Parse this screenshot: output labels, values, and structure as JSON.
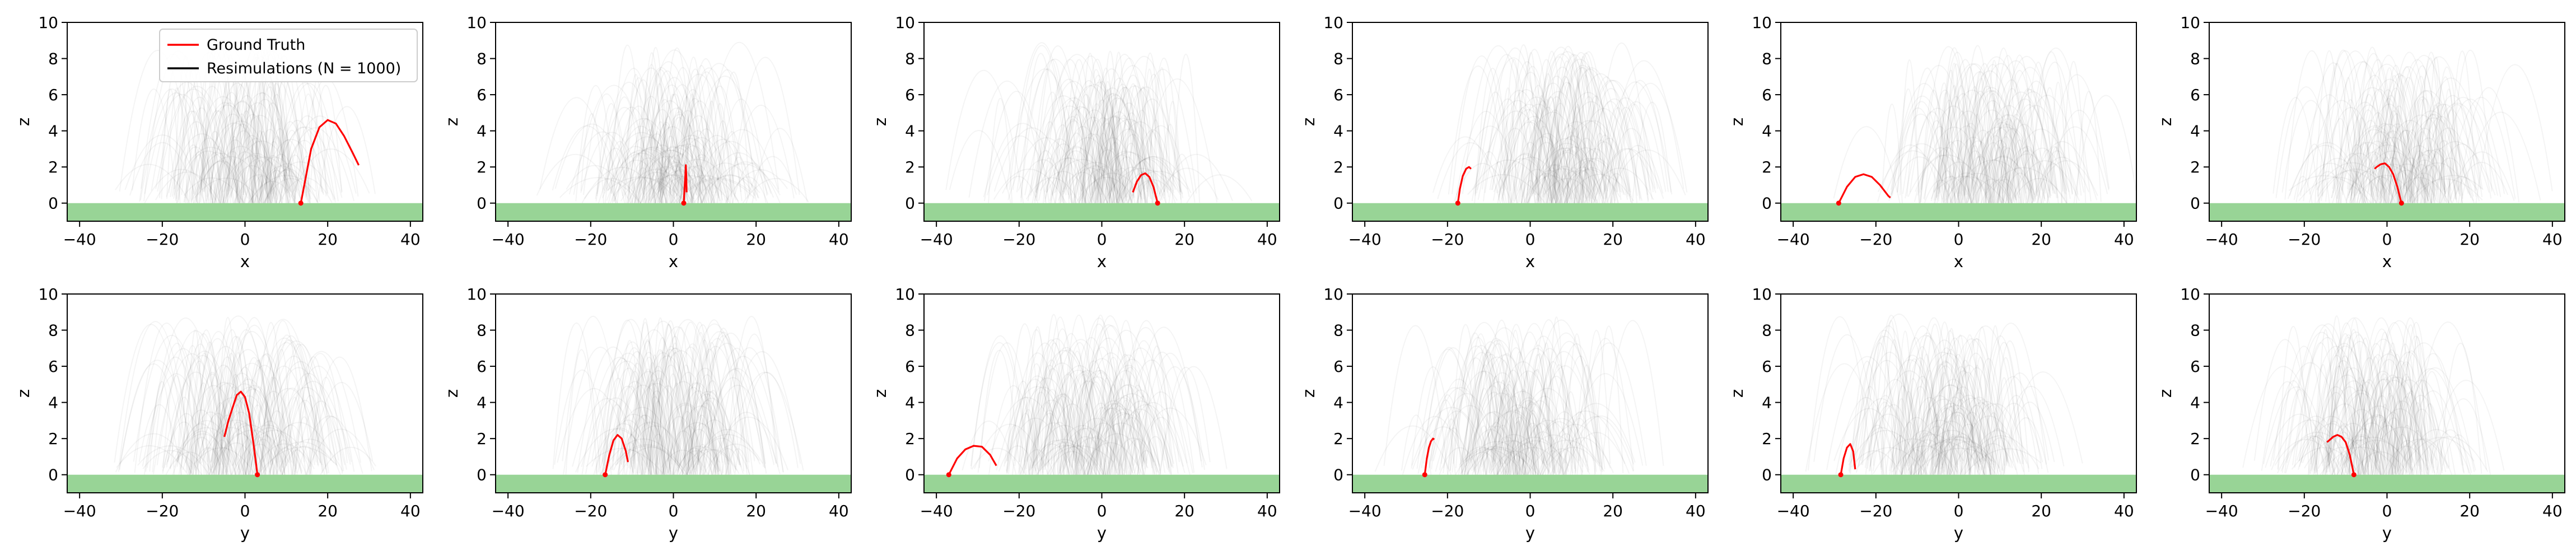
{
  "legend": {
    "location": "upper-left of first panel",
    "entries": [
      {
        "label": "Ground Truth",
        "color": "#ff0000"
      },
      {
        "label": "Resimulations (N = 1000)",
        "color": "#000000"
      }
    ]
  },
  "colors": {
    "ground_truth": "#ff0000",
    "resimulation": "#000000",
    "ground_band": "#98d496",
    "axes": "#000000"
  },
  "chart_data": [
    {
      "type": "line",
      "row": 1,
      "col": 1,
      "xlabel": "x",
      "ylabel": "z",
      "xlim": [
        -43,
        43
      ],
      "ylim": [
        -1,
        10
      ],
      "xticks": [
        -40,
        -20,
        0,
        20,
        40
      ],
      "yticks": [
        0,
        2,
        4,
        6,
        8,
        10
      ],
      "ground_band": [
        -1,
        0
      ],
      "resim_cloud_center_x": 0,
      "series": [
        {
          "name": "Ground Truth",
          "x": [
            13.5,
            14.5,
            16,
            18,
            20,
            22,
            24,
            26,
            27.5
          ],
          "y": [
            0,
            1.2,
            3.0,
            4.2,
            4.6,
            4.4,
            3.7,
            2.8,
            2.1
          ]
        }
      ]
    },
    {
      "type": "line",
      "row": 1,
      "col": 2,
      "xlabel": "x",
      "ylabel": "z",
      "xlim": [
        -43,
        43
      ],
      "ylim": [
        -1,
        10
      ],
      "xticks": [
        -40,
        -20,
        0,
        20,
        40
      ],
      "yticks": [
        0,
        2,
        4,
        6,
        8,
        10
      ],
      "ground_band": [
        -1,
        0
      ],
      "resim_cloud_center_x": 0,
      "series": [
        {
          "name": "Ground Truth",
          "x": [
            2.5,
            2.7,
            2.9,
            3.0,
            3.1,
            3.2
          ],
          "y": [
            0,
            0.8,
            1.6,
            2.1,
            1.6,
            0.6
          ]
        }
      ]
    },
    {
      "type": "line",
      "row": 1,
      "col": 3,
      "xlabel": "x",
      "ylabel": "z",
      "xlim": [
        -43,
        43
      ],
      "ylim": [
        -1,
        10
      ],
      "xticks": [
        -40,
        -20,
        0,
        20,
        40
      ],
      "yticks": [
        0,
        2,
        4,
        6,
        8,
        10
      ],
      "ground_band": [
        -1,
        0
      ],
      "resim_cloud_center_x": 0,
      "series": [
        {
          "name": "Ground Truth",
          "x": [
            13.5,
            12.5,
            11.5,
            10.5,
            9.5,
            8.5,
            7.5
          ],
          "y": [
            0,
            0.9,
            1.45,
            1.65,
            1.55,
            1.2,
            0.6
          ]
        }
      ]
    },
    {
      "type": "line",
      "row": 1,
      "col": 4,
      "xlabel": "x",
      "ylabel": "z",
      "xlim": [
        -43,
        43
      ],
      "ylim": [
        -1,
        10
      ],
      "xticks": [
        -40,
        -20,
        0,
        20,
        40
      ],
      "yticks": [
        0,
        2,
        4,
        6,
        8,
        10
      ],
      "ground_band": [
        -1,
        0
      ],
      "resim_cloud_center_x": 8,
      "series": [
        {
          "name": "Ground Truth",
          "x": [
            -17.5,
            -17.0,
            -16.3,
            -15.5,
            -14.8,
            -14.3
          ],
          "y": [
            0,
            0.8,
            1.5,
            1.9,
            2.0,
            1.9
          ]
        }
      ]
    },
    {
      "type": "line",
      "row": 1,
      "col": 5,
      "xlabel": "x",
      "ylabel": "z",
      "xlim": [
        -43,
        43
      ],
      "ylim": [
        -1,
        10
      ],
      "xticks": [
        -40,
        -20,
        0,
        20,
        40
      ],
      "yticks": [
        0,
        2,
        4,
        6,
        8,
        10
      ],
      "ground_band": [
        -1,
        0
      ],
      "resim_cloud_center_x": 8,
      "series": [
        {
          "name": "Ground Truth",
          "x": [
            -29,
            -27,
            -25,
            -23,
            -21,
            -19,
            -17,
            -16.5
          ],
          "y": [
            0,
            0.9,
            1.45,
            1.6,
            1.45,
            1.0,
            0.4,
            0.3
          ]
        }
      ]
    },
    {
      "type": "line",
      "row": 1,
      "col": 6,
      "xlabel": "x",
      "ylabel": "z",
      "xlim": [
        -43,
        43
      ],
      "ylim": [
        -1,
        10
      ],
      "xticks": [
        -40,
        -20,
        0,
        20,
        40
      ],
      "yticks": [
        0,
        2,
        4,
        6,
        8,
        10
      ],
      "ground_band": [
        -1,
        0
      ],
      "resim_cloud_center_x": 2,
      "series": [
        {
          "name": "Ground Truth",
          "x": [
            3.5,
            2.5,
            1.5,
            0.5,
            -0.5,
            -1.5,
            -2.5,
            -3.0
          ],
          "y": [
            0,
            0.9,
            1.6,
            2.0,
            2.2,
            2.15,
            2.0,
            1.9
          ]
        }
      ]
    },
    {
      "type": "line",
      "row": 2,
      "col": 1,
      "xlabel": "y",
      "ylabel": "z",
      "xlim": [
        -43,
        43
      ],
      "ylim": [
        -1,
        10
      ],
      "xticks": [
        -40,
        -20,
        0,
        20,
        40
      ],
      "yticks": [
        0,
        2,
        4,
        6,
        8,
        10
      ],
      "ground_band": [
        -1,
        0
      ],
      "resim_cloud_center_x": 0,
      "series": [
        {
          "name": "Ground Truth",
          "x": [
            3,
            2,
            1,
            0,
            -1,
            -2,
            -3,
            -4,
            -5
          ],
          "y": [
            0,
            1.8,
            3.4,
            4.3,
            4.6,
            4.4,
            3.7,
            3.0,
            2.1
          ]
        }
      ]
    },
    {
      "type": "line",
      "row": 2,
      "col": 2,
      "xlabel": "y",
      "ylabel": "z",
      "xlim": [
        -43,
        43
      ],
      "ylim": [
        -1,
        10
      ],
      "xticks": [
        -40,
        -20,
        0,
        20,
        40
      ],
      "yticks": [
        0,
        2,
        4,
        6,
        8,
        10
      ],
      "ground_band": [
        -1,
        0
      ],
      "resim_cloud_center_x": 0,
      "series": [
        {
          "name": "Ground Truth",
          "x": [
            -16.5,
            -15.5,
            -14.5,
            -13.5,
            -12.5,
            -11.5,
            -11.0
          ],
          "y": [
            0,
            1.1,
            1.9,
            2.2,
            2.0,
            1.3,
            0.7
          ]
        }
      ]
    },
    {
      "type": "line",
      "row": 2,
      "col": 3,
      "xlabel": "y",
      "ylabel": "z",
      "xlim": [
        -43,
        43
      ],
      "ylim": [
        -1,
        10
      ],
      "xticks": [
        -40,
        -20,
        0,
        20,
        40
      ],
      "yticks": [
        0,
        2,
        4,
        6,
        8,
        10
      ],
      "ground_band": [
        -1,
        0
      ],
      "resim_cloud_center_x": -3,
      "series": [
        {
          "name": "Ground Truth",
          "x": [
            -37,
            -35,
            -33,
            -31,
            -29,
            -27,
            -25.5
          ],
          "y": [
            0,
            0.9,
            1.4,
            1.6,
            1.55,
            1.1,
            0.5
          ]
        }
      ]
    },
    {
      "type": "line",
      "row": 2,
      "col": 4,
      "xlabel": "y",
      "ylabel": "z",
      "xlim": [
        -43,
        43
      ],
      "ylim": [
        -1,
        10
      ],
      "xticks": [
        -40,
        -20,
        0,
        20,
        40
      ],
      "yticks": [
        0,
        2,
        4,
        6,
        8,
        10
      ],
      "ground_band": [
        -1,
        0
      ],
      "resim_cloud_center_x": -2,
      "series": [
        {
          "name": "Ground Truth",
          "x": [
            -25.5,
            -25.0,
            -24.5,
            -24.0,
            -23.5,
            -23.2
          ],
          "y": [
            0,
            0.9,
            1.5,
            1.85,
            2.0,
            1.95
          ]
        }
      ]
    },
    {
      "type": "line",
      "row": 2,
      "col": 5,
      "xlabel": "y",
      "ylabel": "z",
      "xlim": [
        -43,
        43
      ],
      "ylim": [
        -1,
        10
      ],
      "xticks": [
        -40,
        -20,
        0,
        20,
        40
      ],
      "yticks": [
        0,
        2,
        4,
        6,
        8,
        10
      ],
      "ground_band": [
        -1,
        0
      ],
      "resim_cloud_center_x": -4,
      "series": [
        {
          "name": "Ground Truth",
          "x": [
            -28.5,
            -27.8,
            -27.0,
            -26.2,
            -25.5,
            -25.0
          ],
          "y": [
            0,
            0.9,
            1.5,
            1.7,
            1.3,
            0.3
          ]
        }
      ]
    },
    {
      "type": "line",
      "row": 2,
      "col": 6,
      "xlabel": "y",
      "ylabel": "z",
      "xlim": [
        -43,
        43
      ],
      "ylim": [
        -1,
        10
      ],
      "xticks": [
        -40,
        -20,
        0,
        20,
        40
      ],
      "yticks": [
        0,
        2,
        4,
        6,
        8,
        10
      ],
      "ground_band": [
        -1,
        0
      ],
      "resim_cloud_center_x": -2,
      "series": [
        {
          "name": "Ground Truth",
          "x": [
            -8,
            -9,
            -10,
            -11,
            -12,
            -13,
            -14,
            -14.5
          ],
          "y": [
            0,
            1.1,
            1.8,
            2.1,
            2.2,
            2.1,
            1.9,
            1.8
          ]
        }
      ]
    }
  ]
}
